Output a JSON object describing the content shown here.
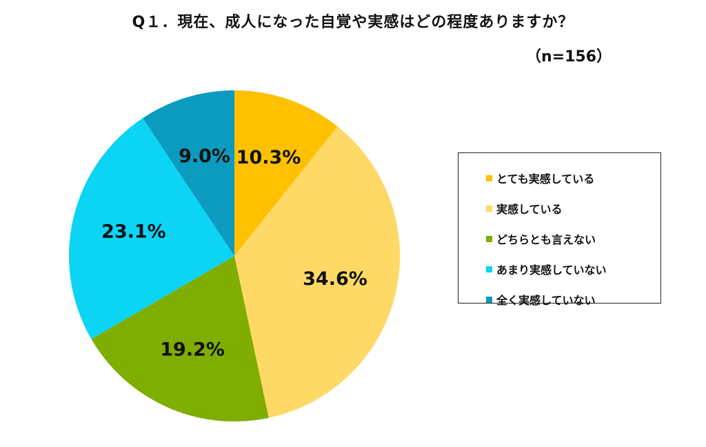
{
  "chart_data": {
    "type": "pie",
    "title": "Q１．現在、成人になった自覚や実感はどの程度ありますか？",
    "subtitle": "（n=156）",
    "categories": [
      "とても実感している",
      "実感している",
      "どちらとも言えない",
      "あまり実感していない",
      "全く実感していない"
    ],
    "values": [
      10.3,
      34.6,
      19.2,
      23.1,
      9.0
    ],
    "labels": [
      "10.3%",
      "34.6%",
      "19.2%",
      "23.1%",
      "9.0%"
    ],
    "colors": [
      "#FFC000",
      "#FFD966",
      "#7FAD00",
      "#0BD4F5",
      "#0B9BBE"
    ],
    "start_angle": "12 o'clock",
    "direction": "clockwise",
    "legend_position": "right"
  }
}
